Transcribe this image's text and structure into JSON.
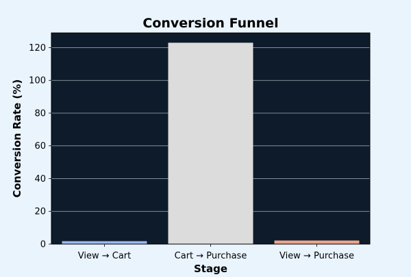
{
  "chart_data": {
    "type": "bar",
    "title": "Conversion Funnel",
    "xlabel": "Stage",
    "ylabel": "Conversion Rate (%)",
    "categories": [
      "View → Cart",
      "Cart → Purchase",
      "View → Purchase"
    ],
    "values": [
      1.8,
      123.0,
      2.2
    ],
    "ylim": [
      0,
      129
    ],
    "yticks": [
      0,
      20,
      40,
      60,
      80,
      100,
      120
    ],
    "grid": true,
    "legend": "none"
  },
  "colors": {
    "page_background": "#eaf4fd",
    "plot_background": "#0e1b2a",
    "grid": "#aab4bd",
    "bars": [
      "#9ab9f2",
      "#dcdcdc",
      "#e9a48b"
    ]
  }
}
